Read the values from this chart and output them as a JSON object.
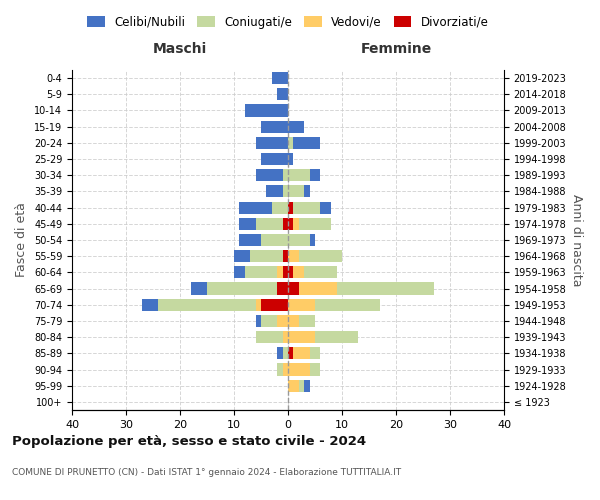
{
  "age_groups": [
    "100+",
    "95-99",
    "90-94",
    "85-89",
    "80-84",
    "75-79",
    "70-74",
    "65-69",
    "60-64",
    "55-59",
    "50-54",
    "45-49",
    "40-44",
    "35-39",
    "30-34",
    "25-29",
    "20-24",
    "15-19",
    "10-14",
    "5-9",
    "0-4"
  ],
  "birth_years": [
    "≤ 1923",
    "1924-1928",
    "1929-1933",
    "1934-1938",
    "1939-1943",
    "1944-1948",
    "1949-1953",
    "1954-1958",
    "1959-1963",
    "1964-1968",
    "1969-1973",
    "1974-1978",
    "1979-1983",
    "1984-1988",
    "1989-1993",
    "1994-1998",
    "1999-2003",
    "2004-2008",
    "2009-2013",
    "2014-2018",
    "2019-2023"
  ],
  "colors": {
    "celibi": "#4472C4",
    "coniugati": "#C5D9A0",
    "vedovi": "#FFCC66",
    "divorziati": "#CC0000"
  },
  "males": {
    "celibi": [
      0,
      0,
      0,
      1,
      0,
      1,
      3,
      3,
      2,
      3,
      4,
      3,
      6,
      3,
      5,
      5,
      6,
      5,
      8,
      2,
      3
    ],
    "coniugati": [
      0,
      0,
      1,
      1,
      5,
      3,
      18,
      13,
      6,
      6,
      5,
      5,
      3,
      1,
      1,
      0,
      0,
      0,
      0,
      0,
      0
    ],
    "vedovi": [
      0,
      0,
      1,
      0,
      1,
      2,
      1,
      0,
      1,
      0,
      0,
      0,
      0,
      0,
      0,
      0,
      0,
      0,
      0,
      0,
      0
    ],
    "divorziati": [
      0,
      0,
      0,
      0,
      0,
      0,
      5,
      2,
      1,
      1,
      0,
      1,
      0,
      0,
      0,
      0,
      0,
      0,
      0,
      0,
      0
    ]
  },
  "females": {
    "nubili": [
      0,
      1,
      0,
      0,
      0,
      0,
      0,
      0,
      0,
      0,
      1,
      0,
      2,
      1,
      2,
      1,
      5,
      3,
      0,
      0,
      0
    ],
    "coniugate": [
      0,
      1,
      2,
      2,
      8,
      3,
      12,
      18,
      6,
      8,
      4,
      6,
      5,
      3,
      4,
      0,
      1,
      0,
      0,
      0,
      0
    ],
    "vedove": [
      0,
      2,
      4,
      3,
      5,
      2,
      5,
      7,
      2,
      2,
      0,
      1,
      0,
      0,
      0,
      0,
      0,
      0,
      0,
      0,
      0
    ],
    "divorziate": [
      0,
      0,
      0,
      1,
      0,
      0,
      0,
      2,
      1,
      0,
      0,
      1,
      1,
      0,
      0,
      0,
      0,
      0,
      0,
      0,
      0
    ]
  },
  "xlim": 40,
  "title": "Popolazione per età, sesso e stato civile - 2024",
  "subtitle": "COMUNE DI PRUNETTO (CN) - Dati ISTAT 1° gennaio 2024 - Elaborazione TUTTITALIA.IT",
  "ylabel_left": "Fasce di età",
  "ylabel_right": "Anni di nascita",
  "xlabel_maschi": "Maschi",
  "xlabel_femmine": "Femmine",
  "legend_labels": [
    "Celibi/Nubili",
    "Coniugati/e",
    "Vedovi/e",
    "Divorziati/e"
  ],
  "background_color": "#ffffff",
  "grid_color": "#cccccc"
}
